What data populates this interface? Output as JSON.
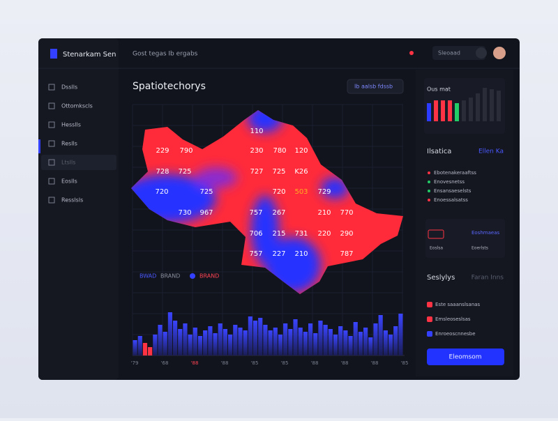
{
  "brand": "Stenarkam Sen",
  "topbar": {
    "breadcrumb": "Gost tegas  Ib ergabs",
    "search": "Sleoaad"
  },
  "sidebar": {
    "items": [
      "Dsslls",
      "Ottomkscls",
      "Hesslls",
      "Reslls",
      "Ltslls",
      "Eoslls",
      "Resslsls"
    ]
  },
  "map": {
    "title": "Spatiotechorys",
    "filter": "Ib aalsb  fdssb",
    "labels": [
      "110",
      "229",
      "790",
      "230",
      "780",
      "120",
      "728",
      "725",
      "727",
      "725",
      "K26",
      "720",
      "725",
      "720",
      "503",
      "729",
      "730",
      "967",
      "757",
      "267",
      "210",
      "770",
      "706",
      "215",
      "731",
      "220",
      "290",
      "757",
      "227",
      "210",
      "787"
    ]
  },
  "legend": [
    "BWAD",
    "BRAND",
    "BRAND"
  ],
  "histogram": {
    "values": [
      22,
      28,
      18,
      12,
      30,
      44,
      34,
      62,
      50,
      38,
      46,
      30,
      40,
      28,
      36,
      42,
      32,
      46,
      38,
      30,
      44,
      40,
      36,
      56,
      50,
      54,
      44,
      36,
      40,
      30,
      46,
      38,
      52,
      40,
      34,
      46,
      32,
      50,
      44,
      38,
      30,
      42,
      36,
      28,
      48,
      34,
      40,
      26,
      46,
      58,
      36,
      30,
      42,
      60
    ],
    "xlabels": [
      "'79",
      "'68",
      "'88",
      "'88",
      "'85",
      "'85",
      "'88",
      "'88",
      "'88",
      "'85"
    ]
  },
  "panel": {
    "chart_title": "Ous mat",
    "chart_values": [
      26,
      30,
      30,
      30,
      26,
      30,
      34,
      40,
      48,
      46,
      44
    ],
    "chart_colors": [
      "#2b3bff",
      "#ff3344",
      "#ff3344",
      "#ff3344",
      "#22cc66",
      "#2a2d38",
      "#2a2d38",
      "#2a2d38",
      "#2a2d38",
      "#2a2d38",
      "#2a2d38"
    ],
    "section1": "Ilsatica",
    "section1_link": "Ellen Ka",
    "list1": [
      "Ebotenakeraaftss",
      "Enovesnetss",
      "Ensansaeselsts",
      "Enoessalsatss"
    ],
    "card_left": "Eoslsa",
    "card_right": "Eoshmaeas",
    "card_sub": "Eoerlsts",
    "section2": "Seslylys",
    "section2_link": "Faran Inns",
    "list2": [
      "Este saaanslsanas",
      "Emsleoseslsas",
      "Enroeoscnnesbe"
    ],
    "button": "Eleomsom"
  }
}
